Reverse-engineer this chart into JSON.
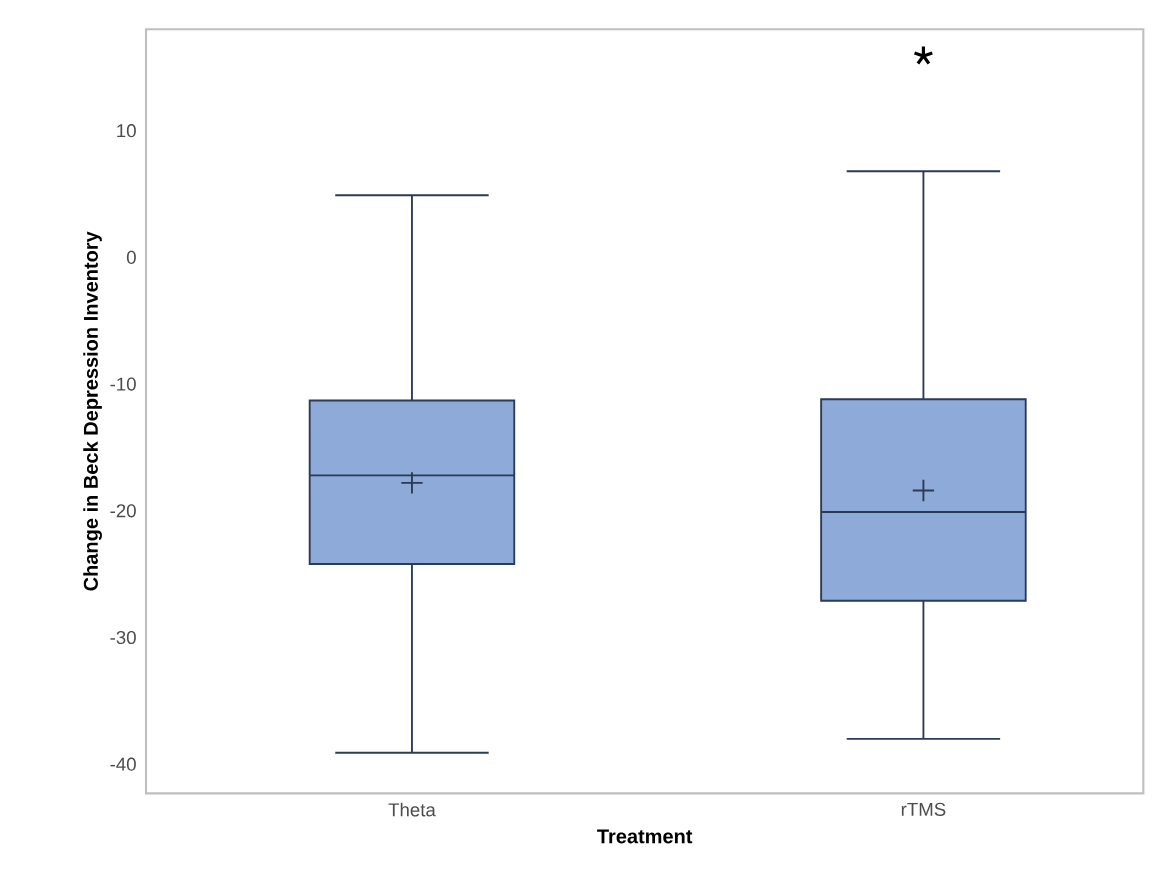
{
  "chart_data": {
    "type": "box",
    "xlabel": "Treatment",
    "ylabel": "Change in Beck Depression Inventory",
    "categories": [
      "Theta",
      "rTMS"
    ],
    "boxes": [
      {
        "low": -39.1,
        "q1": -24.2,
        "median": -17.2,
        "q3": -11.3,
        "high": 4.9,
        "mean": -17.8
      },
      {
        "low": -38.0,
        "q1": -27.1,
        "median": -20.1,
        "q3": -11.2,
        "high": 6.8,
        "mean": -18.4,
        "outliers": [
          15.9
        ]
      }
    ],
    "color": "#8eaad8",
    "ylim": [
      -42.3,
      18
    ],
    "yticks": [
      -40,
      -30,
      -20,
      -10,
      0,
      10
    ]
  }
}
